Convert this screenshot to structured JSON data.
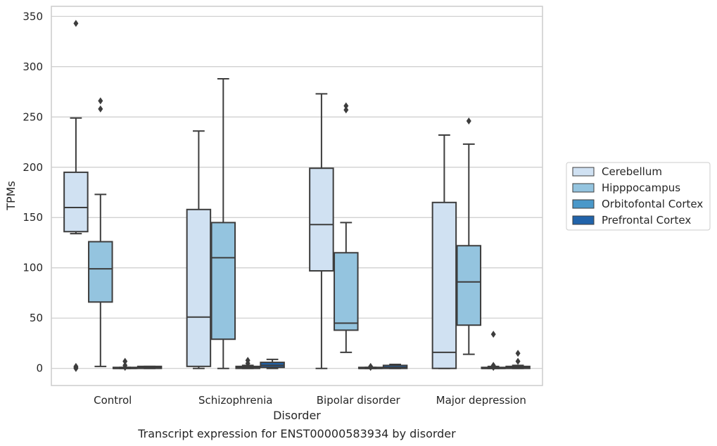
{
  "caption": "Transcript expression for ENST00000583934 by disorder",
  "chart_data": {
    "type": "box",
    "xlabel": "Disorder",
    "ylabel": "TPMs",
    "categories": [
      "Control",
      "Schizophrenia",
      "Bipolar disorder",
      "Major depression"
    ],
    "yticks": [
      0,
      50,
      100,
      150,
      200,
      250,
      300,
      350
    ],
    "ylim": [
      -17,
      360
    ],
    "grid": "horizontal",
    "legend_position": "right",
    "series": [
      {
        "name": "Cerebellum",
        "color": "#d0e1f2",
        "boxes": [
          {
            "whislo": 134,
            "q1": 136,
            "med": 160,
            "q3": 195,
            "whishi": 249,
            "fliers": [
              343,
              0,
              1,
              2
            ]
          },
          {
            "whislo": 0,
            "q1": 2,
            "med": 51,
            "q3": 158,
            "whishi": 236,
            "fliers": []
          },
          {
            "whislo": 0,
            "q1": 97,
            "med": 143,
            "q3": 199,
            "whishi": 273,
            "fliers": []
          },
          {
            "whislo": 0,
            "q1": 0,
            "med": 16,
            "q3": 165,
            "whishi": 232,
            "fliers": []
          }
        ]
      },
      {
        "name": "Hipppocampus",
        "color": "#94c4df",
        "boxes": [
          {
            "whislo": 2,
            "q1": 66,
            "med": 99,
            "q3": 126,
            "whishi": 173,
            "fliers": [
              266,
              258
            ]
          },
          {
            "whislo": 0,
            "q1": 29,
            "med": 110,
            "q3": 145,
            "whishi": 288,
            "fliers": []
          },
          {
            "whislo": 16,
            "q1": 38,
            "med": 45,
            "q3": 115,
            "whishi": 145,
            "fliers": [
              261,
              257
            ]
          },
          {
            "whislo": 14,
            "q1": 43,
            "med": 86,
            "q3": 122,
            "whishi": 223,
            "fliers": [
              246
            ]
          }
        ]
      },
      {
        "name": "Orbitofontal Cortex",
        "color": "#4a98c9",
        "boxes": [
          {
            "whislo": 0,
            "q1": 0,
            "med": 0,
            "q3": 1,
            "whishi": 1,
            "fliers": [
              7,
              3,
              1
            ]
          },
          {
            "whislo": 0,
            "q1": 0,
            "med": 1,
            "q3": 2,
            "whishi": 3,
            "fliers": [
              8,
              5
            ]
          },
          {
            "whislo": 0,
            "q1": 0,
            "med": 0,
            "q3": 1,
            "whishi": 1,
            "fliers": [
              2,
              1
            ]
          },
          {
            "whislo": 0,
            "q1": 0,
            "med": 0,
            "q3": 1,
            "whishi": 2,
            "fliers": [
              34,
              3,
              1
            ]
          }
        ]
      },
      {
        "name": "Prefrontal Cortex",
        "color": "#2163aa",
        "boxes": [
          {
            "whislo": 0,
            "q1": 0,
            "med": 1,
            "q3": 2,
            "whishi": 2,
            "fliers": []
          },
          {
            "whislo": 0,
            "q1": 1,
            "med": 3,
            "q3": 6,
            "whishi": 9,
            "fliers": []
          },
          {
            "whislo": 0,
            "q1": 0,
            "med": 1,
            "q3": 3,
            "whishi": 4,
            "fliers": []
          },
          {
            "whislo": 0,
            "q1": 0,
            "med": 1,
            "q3": 2,
            "whishi": 3,
            "fliers": [
              15,
              7
            ]
          }
        ]
      }
    ]
  }
}
